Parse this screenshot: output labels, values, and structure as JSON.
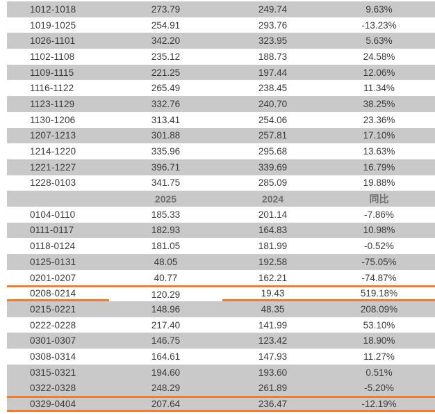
{
  "colors": {
    "accent_orange": "#ED7D31",
    "row_shade_gray": "#C9C9C9",
    "text_dark": "#3A3A3A",
    "header_text_gray": "#6F6F6F"
  },
  "header": {
    "period": "",
    "v2025": "2025",
    "v2024": "2024",
    "yoy": "同比"
  },
  "rows": [
    {
      "type": "data",
      "period": "1012-1018",
      "v2025": "273.79",
      "v2024": "249.74",
      "yoy": "9.63%",
      "shade": "gray",
      "highlight": ""
    },
    {
      "type": "data",
      "period": "1019-1025",
      "v2025": "254.91",
      "v2024": "293.76",
      "yoy": "-13.23%",
      "shade": "white",
      "highlight": ""
    },
    {
      "type": "data",
      "period": "1026-1101",
      "v2025": "342.20",
      "v2024": "323.95",
      "yoy": "5.63%",
      "shade": "gray",
      "highlight": ""
    },
    {
      "type": "data",
      "period": "1102-1108",
      "v2025": "235.12",
      "v2024": "188.73",
      "yoy": "24.58%",
      "shade": "white",
      "highlight": ""
    },
    {
      "type": "data",
      "period": "1109-1115",
      "v2025": "221.25",
      "v2024": "197.44",
      "yoy": "12.06%",
      "shade": "gray",
      "highlight": ""
    },
    {
      "type": "data",
      "period": "1116-1122",
      "v2025": "265.49",
      "v2024": "238.45",
      "yoy": "11.34%",
      "shade": "white",
      "highlight": ""
    },
    {
      "type": "data",
      "period": "1123-1129",
      "v2025": "332.76",
      "v2024": "240.70",
      "yoy": "38.25%",
      "shade": "gray",
      "highlight": ""
    },
    {
      "type": "data",
      "period": "1130-1206",
      "v2025": "313.41",
      "v2024": "254.06",
      "yoy": "23.36%",
      "shade": "white",
      "highlight": ""
    },
    {
      "type": "data",
      "period": "1207-1213",
      "v2025": "301.88",
      "v2024": "257.81",
      "yoy": "17.10%",
      "shade": "gray",
      "highlight": ""
    },
    {
      "type": "data",
      "period": "1214-1220",
      "v2025": "335.96",
      "v2024": "295.68",
      "yoy": "13.63%",
      "shade": "white",
      "highlight": ""
    },
    {
      "type": "data",
      "period": "1221-1227",
      "v2025": "396.71",
      "v2024": "339.69",
      "yoy": "16.79%",
      "shade": "gray",
      "highlight": ""
    },
    {
      "type": "data",
      "period": "1228-0103",
      "v2025": "341.75",
      "v2024": "285.09",
      "yoy": "19.88%",
      "shade": "white",
      "highlight": ""
    },
    {
      "type": "header",
      "period": "",
      "v2025": "2025",
      "v2024": "2024",
      "yoy": "同比",
      "shade": "gray",
      "highlight": ""
    },
    {
      "type": "data",
      "period": "0104-0110",
      "v2025": "185.33",
      "v2024": "201.14",
      "yoy": "-7.86%",
      "shade": "white",
      "highlight": ""
    },
    {
      "type": "data",
      "period": "0111-0117",
      "v2025": "182.93",
      "v2024": "164.83",
      "yoy": "10.98%",
      "shade": "gray",
      "highlight": ""
    },
    {
      "type": "data",
      "period": "0118-0124",
      "v2025": "181.05",
      "v2024": "181.99",
      "yoy": "-0.52%",
      "shade": "white",
      "highlight": ""
    },
    {
      "type": "data",
      "period": "0125-0131",
      "v2025": "48.05",
      "v2024": "192.58",
      "yoy": "-75.05%",
      "shade": "gray",
      "highlight": ""
    },
    {
      "type": "data",
      "period": "0201-0207",
      "v2025": "40.77",
      "v2024": "162.21",
      "yoy": "-74.87%",
      "shade": "white",
      "highlight": ""
    },
    {
      "type": "data",
      "period": "0208-0214",
      "v2025": "120.29",
      "v2024": "19.43",
      "yoy": "519.18%",
      "shade": "white",
      "highlight": "mid"
    },
    {
      "type": "data",
      "period": "0215-0221",
      "v2025": "148.96",
      "v2024": "48.35",
      "yoy": "208.09%",
      "shade": "gray",
      "highlight": ""
    },
    {
      "type": "data",
      "period": "0222-0228",
      "v2025": "217.40",
      "v2024": "141.99",
      "yoy": "53.10%",
      "shade": "white",
      "highlight": ""
    },
    {
      "type": "data",
      "period": "0301-0307",
      "v2025": "146.75",
      "v2024": "123.42",
      "yoy": "18.90%",
      "shade": "gray",
      "highlight": ""
    },
    {
      "type": "data",
      "period": "0308-0314",
      "v2025": "164.61",
      "v2024": "147.93",
      "yoy": "11.27%",
      "shade": "white",
      "highlight": ""
    },
    {
      "type": "data",
      "period": "0315-0321",
      "v2025": "194.60",
      "v2024": "193.60",
      "yoy": "0.51%",
      "shade": "gray",
      "highlight": ""
    },
    {
      "type": "data",
      "period": "0322-0328",
      "v2025": "248.29",
      "v2024": "261.89",
      "yoy": "-5.20%",
      "shade": "gray",
      "highlight": ""
    },
    {
      "type": "data",
      "period": "0329-0404",
      "v2025": "207.64",
      "v2024": "236.47",
      "yoy": "-12.19%",
      "shade": "gray",
      "highlight": "last"
    }
  ],
  "chart_data": {
    "type": "table",
    "columns": [
      "",
      "2025",
      "2024",
      "同比"
    ],
    "inline_header_row_index": 12,
    "rows": [
      [
        "1012-1018",
        273.79,
        249.74,
        "9.63%"
      ],
      [
        "1019-1025",
        254.91,
        293.76,
        "-13.23%"
      ],
      [
        "1026-1101",
        342.2,
        323.95,
        "5.63%"
      ],
      [
        "1102-1108",
        235.12,
        188.73,
        "24.58%"
      ],
      [
        "1109-1115",
        221.25,
        197.44,
        "12.06%"
      ],
      [
        "1116-1122",
        265.49,
        238.45,
        "11.34%"
      ],
      [
        "1123-1129",
        332.76,
        240.7,
        "38.25%"
      ],
      [
        "1130-1206",
        313.41,
        254.06,
        "23.36%"
      ],
      [
        "1207-1213",
        301.88,
        257.81,
        "17.10%"
      ],
      [
        "1214-1220",
        335.96,
        295.68,
        "13.63%"
      ],
      [
        "1221-1227",
        396.71,
        339.69,
        "16.79%"
      ],
      [
        "1228-0103",
        341.75,
        285.09,
        "19.88%"
      ],
      [
        "0104-0110",
        185.33,
        201.14,
        "-7.86%"
      ],
      [
        "0111-0117",
        182.93,
        164.83,
        "10.98%"
      ],
      [
        "0118-0124",
        181.05,
        181.99,
        "-0.52%"
      ],
      [
        "0125-0131",
        48.05,
        192.58,
        "-75.05%"
      ],
      [
        "0201-0207",
        40.77,
        162.21,
        "-74.87%"
      ],
      [
        "0208-0214",
        120.29,
        19.43,
        "519.18%"
      ],
      [
        "0215-0221",
        148.96,
        48.35,
        "208.09%"
      ],
      [
        "0222-0228",
        217.4,
        141.99,
        "53.10%"
      ],
      [
        "0301-0307",
        146.75,
        123.42,
        "18.90%"
      ],
      [
        "0308-0314",
        164.61,
        147.93,
        "11.27%"
      ],
      [
        "0315-0321",
        194.6,
        193.6,
        "0.51%"
      ],
      [
        "0322-0328",
        248.29,
        261.89,
        "-5.20%"
      ],
      [
        "0329-0404",
        207.64,
        236.47,
        "-12.19%"
      ]
    ]
  }
}
